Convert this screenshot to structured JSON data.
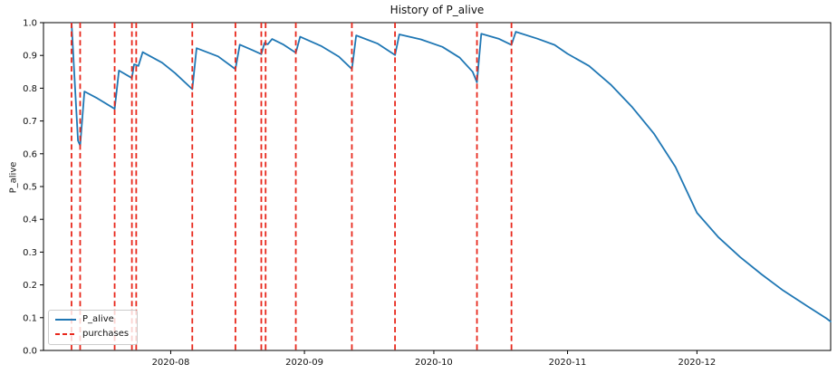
{
  "figure": {
    "title": "History of P_alive",
    "y_axis_label": "P_alive"
  },
  "colors": {
    "line": "#1f77b4",
    "purchases": "#e8281c",
    "spine": "#000000",
    "text": "#111111",
    "legend_border": "#cccccc",
    "background": "#ffffff"
  },
  "legend": {
    "items": [
      {
        "label": "P_alive",
        "swatch": "solid-line"
      },
      {
        "label": "purchases",
        "swatch": "dashed-line"
      }
    ],
    "position": "lower left"
  },
  "chart_data": {
    "type": "line",
    "title": "History of P_alive",
    "xlabel": "",
    "ylabel": "P_alive",
    "grid": false,
    "legend_position": "lower left",
    "ylim": [
      0.0,
      1.0
    ],
    "ytick_labels": [
      "0.0",
      "0.1",
      "0.2",
      "0.3",
      "0.4",
      "0.5",
      "0.6",
      "0.7",
      "0.8",
      "0.9",
      "1.0"
    ],
    "xlim": [
      "2020-07-02T12:00:00Z",
      "2021-01-01T00:00:00Z"
    ],
    "xticks": [
      {
        "date": "2020-08-01",
        "label": "2020-08"
      },
      {
        "date": "2020-09-01",
        "label": "2020-09"
      },
      {
        "date": "2020-10-01",
        "label": "2020-10"
      },
      {
        "date": "2020-11-01",
        "label": "2020-11"
      },
      {
        "date": "2020-12-01",
        "label": "2020-12"
      }
    ],
    "series": [
      {
        "name": "P_alive",
        "color": "#1f77b4",
        "style": "solid",
        "points": [
          [
            "2020-07-09",
            1.0
          ],
          [
            "2020-07-09T18:00Z",
            0.82
          ],
          [
            "2020-07-10T12:00Z",
            0.64
          ],
          [
            "2020-07-11",
            0.625
          ],
          [
            "2020-07-12",
            0.79
          ],
          [
            "2020-07-15",
            0.769
          ],
          [
            "2020-07-19",
            0.737
          ],
          [
            "2020-07-20",
            0.854
          ],
          [
            "2020-07-23",
            0.831
          ],
          [
            "2020-07-23T12:00Z",
            0.873
          ],
          [
            "2020-07-24T12:00Z",
            0.868
          ],
          [
            "2020-07-25T12:00Z",
            0.91
          ],
          [
            "2020-07-30",
            0.878
          ],
          [
            "2020-08-02",
            0.846
          ],
          [
            "2020-08-06",
            0.797
          ],
          [
            "2020-08-07",
            0.922
          ],
          [
            "2020-08-12",
            0.897
          ],
          [
            "2020-08-16",
            0.858
          ],
          [
            "2020-08-17",
            0.933
          ],
          [
            "2020-08-20",
            0.916
          ],
          [
            "2020-08-22",
            0.904
          ],
          [
            "2020-08-22T18:00Z",
            0.938
          ],
          [
            "2020-08-23T12:00Z",
            0.934
          ],
          [
            "2020-08-24T12:00Z",
            0.95
          ],
          [
            "2020-08-27",
            0.934
          ],
          [
            "2020-08-30",
            0.908
          ],
          [
            "2020-08-31",
            0.957
          ],
          [
            "2020-09-05",
            0.928
          ],
          [
            "2020-09-09",
            0.896
          ],
          [
            "2020-09-12",
            0.858
          ],
          [
            "2020-09-13",
            0.961
          ],
          [
            "2020-09-18",
            0.936
          ],
          [
            "2020-09-22",
            0.901
          ],
          [
            "2020-09-23",
            0.964
          ],
          [
            "2020-09-28",
            0.949
          ],
          [
            "2020-10-03",
            0.926
          ],
          [
            "2020-10-07",
            0.893
          ],
          [
            "2020-10-10",
            0.85
          ],
          [
            "2020-10-11",
            0.818
          ],
          [
            "2020-10-12",
            0.966
          ],
          [
            "2020-10-16",
            0.951
          ],
          [
            "2020-10-19",
            0.932
          ],
          [
            "2020-10-20",
            0.972
          ],
          [
            "2020-10-25",
            0.951
          ],
          [
            "2020-10-29",
            0.932
          ],
          [
            "2020-11-01",
            0.905
          ],
          [
            "2020-11-06",
            0.868
          ],
          [
            "2020-11-11",
            0.811
          ],
          [
            "2020-11-16",
            0.742
          ],
          [
            "2020-11-21",
            0.662
          ],
          [
            "2020-11-26",
            0.56
          ],
          [
            "2020-12-01",
            0.42
          ],
          [
            "2020-12-06",
            0.345
          ],
          [
            "2020-12-11",
            0.285
          ],
          [
            "2020-12-16",
            0.232
          ],
          [
            "2020-12-21",
            0.183
          ],
          [
            "2020-12-26",
            0.14
          ],
          [
            "2020-12-31",
            0.098
          ],
          [
            "2021-01-01",
            0.088
          ]
        ]
      }
    ],
    "purchases": {
      "name": "purchases",
      "color": "#e8281c",
      "style": "dashed",
      "dates": [
        "2020-07-09",
        "2020-07-11",
        "2020-07-19",
        "2020-07-23",
        "2020-07-24",
        "2020-08-06",
        "2020-08-16",
        "2020-08-22",
        "2020-08-23",
        "2020-08-30",
        "2020-09-12",
        "2020-09-22",
        "2020-10-11",
        "2020-10-19"
      ]
    }
  }
}
